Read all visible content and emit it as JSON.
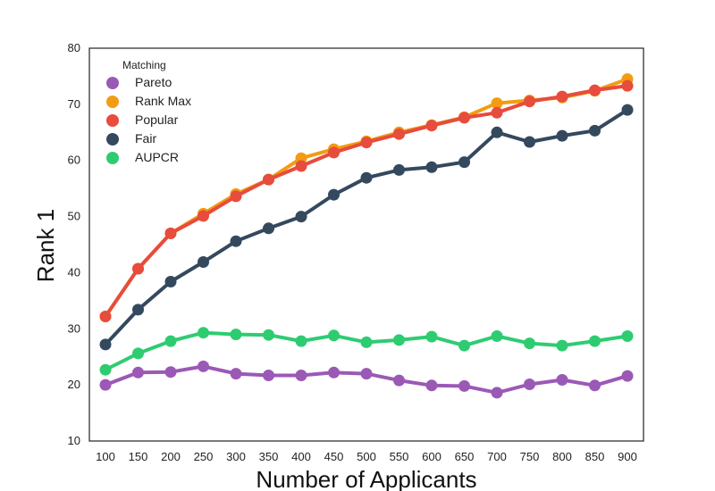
{
  "chart_data": {
    "type": "line",
    "title": "",
    "xlabel": "Number of Applicants",
    "ylabel": "Rank 1",
    "ylim": [
      10,
      80
    ],
    "yticks": [
      10,
      20,
      30,
      40,
      50,
      60,
      70,
      80
    ],
    "grid": false,
    "legend_title": "Matching",
    "legend_position": "top-left",
    "categories": [
      "100",
      "150",
      "200",
      "250",
      "300",
      "350",
      "400",
      "450",
      "500",
      "550",
      "600",
      "650",
      "700",
      "750",
      "800",
      "850",
      "900"
    ],
    "series": [
      {
        "name": "Pareto",
        "color": "#9b59b6",
        "values": [
          20.0,
          22.2,
          22.3,
          23.3,
          22.0,
          21.7,
          21.7,
          22.2,
          22.0,
          20.8,
          19.9,
          19.8,
          18.6,
          20.1,
          20.9,
          19.9,
          21.6
        ]
      },
      {
        "name": "Rank Max",
        "color": "#f39c12",
        "values": [
          32.2,
          40.7,
          47.0,
          50.5,
          54.0,
          56.6,
          60.4,
          62.0,
          63.4,
          65.0,
          66.3,
          67.7,
          70.2,
          70.7,
          71.2,
          72.4,
          74.5
        ]
      },
      {
        "name": "Popular",
        "color": "#e74c3c",
        "values": [
          32.2,
          40.7,
          47.0,
          50.1,
          53.6,
          56.6,
          59.0,
          61.4,
          63.2,
          64.7,
          66.2,
          67.6,
          68.5,
          70.5,
          71.4,
          72.5,
          73.3
        ]
      },
      {
        "name": "Fair",
        "color": "#34495e",
        "values": [
          27.2,
          33.4,
          38.4,
          41.9,
          45.6,
          47.9,
          50.0,
          53.9,
          56.9,
          58.3,
          58.8,
          59.7,
          65.0,
          63.3,
          64.4,
          65.3,
          69.0
        ]
      },
      {
        "name": "AUPCR",
        "color": "#2ecc71",
        "values": [
          22.7,
          25.6,
          27.8,
          29.3,
          29.0,
          28.9,
          27.8,
          28.8,
          27.6,
          28.0,
          28.6,
          27.0,
          28.7,
          27.4,
          27.0,
          27.8,
          28.7
        ]
      }
    ]
  }
}
